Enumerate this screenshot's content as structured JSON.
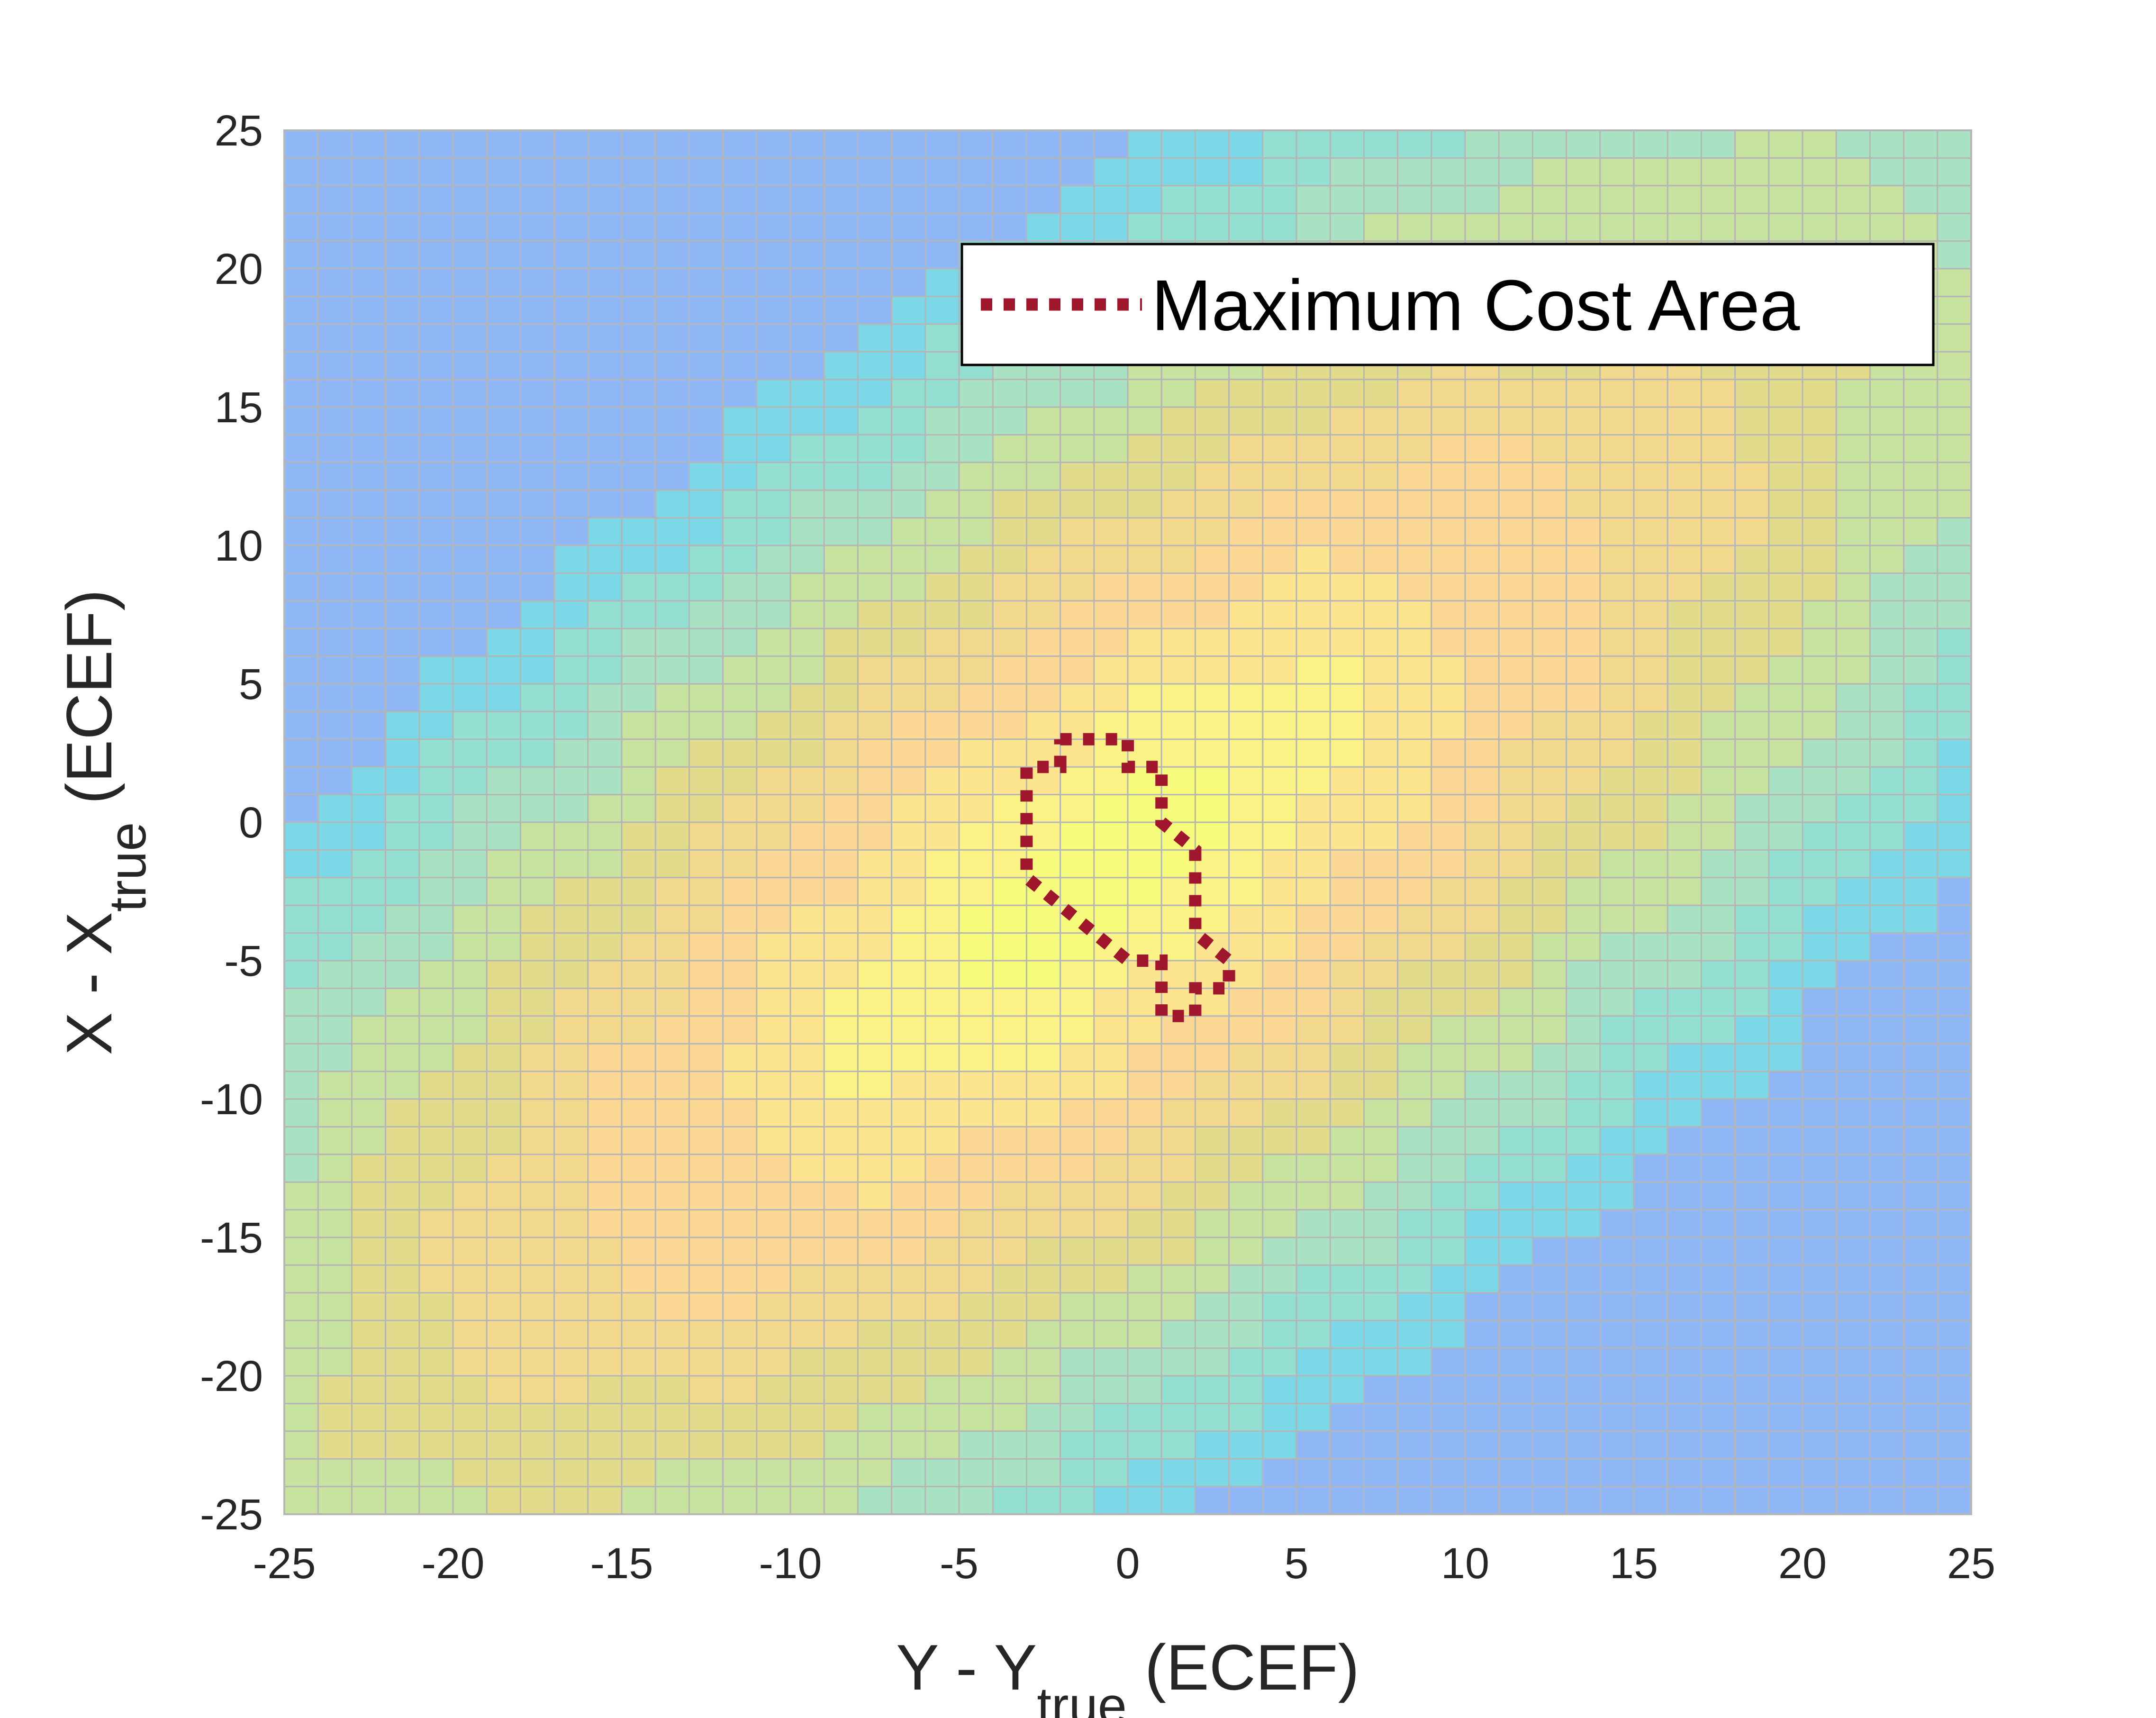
{
  "chart_data": {
    "type": "heatmap",
    "title": "",
    "xlabel": {
      "main": "Y - Y",
      "sub": "true",
      "tail": " (ECEF)"
    },
    "ylabel": {
      "main": "X - X",
      "sub": "true",
      "tail": " (ECEF)"
    },
    "xlim": [
      -25,
      25
    ],
    "ylim": [
      -25,
      25
    ],
    "cell_size": 1,
    "grid": true,
    "xticks": [
      "-25",
      "-20",
      "-15",
      "-10",
      "-5",
      "0",
      "5",
      "10",
      "15",
      "20",
      "25"
    ],
    "yticks": [
      "25",
      "20",
      "15",
      "10",
      "5",
      "0",
      "-5",
      "-10",
      "-15",
      "-20",
      "-25"
    ],
    "field": {
      "description_colormap": "low=blue/cyan, mid=green, high=orange/yellow",
      "peak_center": [
        -1,
        -2
      ],
      "ridge_direction": [
        1,
        1
      ]
    },
    "colors": {
      "grid": "#b5b5b5",
      "contour": "#a0162c",
      "colormap": [
        "#8fb6f5",
        "#7cd8e6",
        "#93e0d2",
        "#a9e2c2",
        "#c8e29f",
        "#e2db8b",
        "#f3d98e",
        "#fbd995",
        "#fde58f",
        "#fbf385",
        "#f7fb7c"
      ]
    },
    "legend": {
      "label": "Maximum Cost Area",
      "position": "top-right"
    },
    "series": [
      {
        "name": "Maximum Cost Area",
        "style": "dotted",
        "points": [
          [
            -2,
            3
          ],
          [
            0,
            3
          ],
          [
            0,
            2
          ],
          [
            1,
            2
          ],
          [
            1,
            0
          ],
          [
            2,
            -1
          ],
          [
            2,
            -4
          ],
          [
            3,
            -5
          ],
          [
            3,
            -6
          ],
          [
            2,
            -6
          ],
          [
            2,
            -7
          ],
          [
            1,
            -7
          ],
          [
            1,
            -5
          ],
          [
            0,
            -5
          ],
          [
            -3,
            -2
          ],
          [
            -3,
            2
          ],
          [
            -2,
            2
          ],
          [
            -2,
            3
          ]
        ]
      }
    ]
  }
}
